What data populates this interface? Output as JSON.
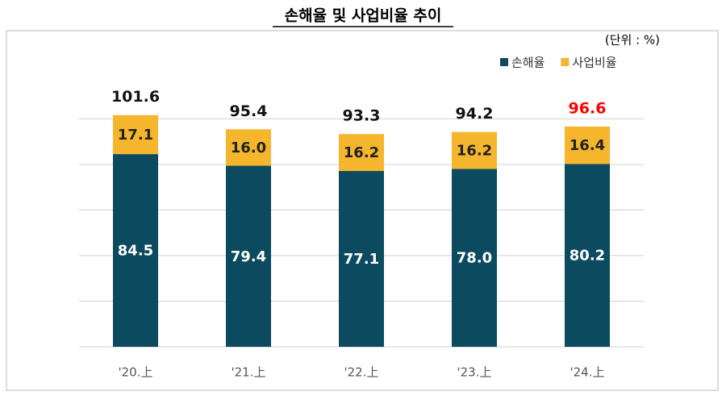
{
  "chart_data": {
    "type": "stacked_bar",
    "title": "손해율 및 사업비율 추이",
    "unit": "(단위 : %)",
    "categories": [
      "'20.上",
      "'21.上",
      "'22.上",
      "'23.上",
      "'24.上"
    ],
    "series": [
      {
        "name": "손해율",
        "color": "#0c4a60",
        "values": [
          84.5,
          79.4,
          77.1,
          78.0,
          80.2
        ],
        "value_labels": [
          "84.5",
          "79.4",
          "77.1",
          "78.0",
          "80.2"
        ]
      },
      {
        "name": "사업비율",
        "color": "#f5b62e",
        "values": [
          17.1,
          16.0,
          16.2,
          16.2,
          16.4
        ],
        "value_labels": [
          "17.1",
          "16.0",
          "16.2",
          "16.2",
          "16.4"
        ]
      }
    ],
    "totals": [
      101.6,
      95.4,
      93.3,
      94.2,
      96.6
    ],
    "totals_colors": [
      "#111111",
      "#111111",
      "#111111",
      "#111111",
      "#ff0000"
    ],
    "ylim": [
      0,
      110
    ],
    "yticks": [
      0,
      20,
      40,
      60,
      80,
      100
    ],
    "grid": true
  }
}
